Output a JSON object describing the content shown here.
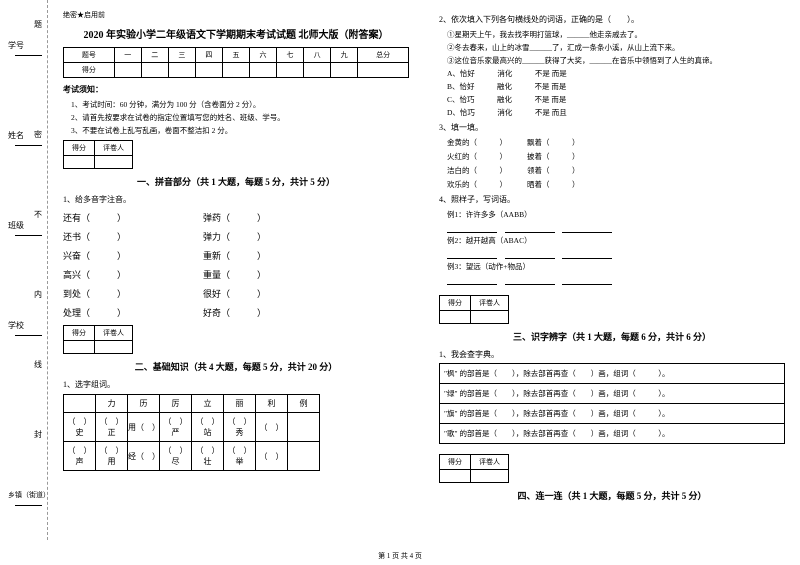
{
  "gutter": {
    "labels": [
      "学号",
      "姓名",
      "班级",
      "学校",
      "乡镇（街道）"
    ],
    "marks": [
      "题",
      "密",
      "不",
      "内",
      "线",
      "封"
    ]
  },
  "secret": "绝密★启用前",
  "title": "2020 年实验小学二年级语文下学期期末考试试题  北师大版（附答案）",
  "scoreHeaders": [
    "题号",
    "一",
    "二",
    "三",
    "四",
    "五",
    "六",
    "七",
    "八",
    "九",
    "总分"
  ],
  "scoreRow": "得分",
  "noticeTitle": "考试须知：",
  "notices": [
    "1、考试时间：60 分钟，满分为 100 分（含卷面分 2 分）。",
    "2、请首先按要求在试卷的指定位置填写您的姓名、班级、学号。",
    "3、不要在试卷上乱写乱画，卷面不整洁扣 2 分。"
  ],
  "marker": {
    "c1": "得分",
    "c2": "评卷人"
  },
  "s1": {
    "title": "一、拼音部分（共 1 大题，每题 5 分，共计 5 分）",
    "q": "1、给多音字注音。",
    "rows": [
      [
        "还有（　　　）",
        "弹药（　　　）"
      ],
      [
        "还书（　　　）",
        "弹力（　　　）"
      ],
      [
        "兴奋（　　　）",
        "重新（　　　）"
      ],
      [
        "高兴（　　　）",
        "重量（　　　）"
      ],
      [
        "到处（　　　）",
        "很好（　　　）"
      ],
      [
        "处理（　　　）",
        "好奇（　　　）"
      ]
    ]
  },
  "s2": {
    "title": "二、基础知识（共 4 大题，每题 5 分，共计 20 分）",
    "q1": "1、选字组词。",
    "charHeader": [
      "",
      "力",
      "历",
      "厉",
      "立",
      "丽",
      "利",
      "例"
    ],
    "charRows": [
      [
        "（　）史",
        "（　）正",
        "用（　）",
        "（　）严",
        "（　）站",
        "（　）秀",
        "（　）",
        ""
      ],
      [
        "（　）声",
        "（　）用",
        "经（　）",
        "（　）尽",
        "（　）壮",
        "（　）举",
        "（　）",
        ""
      ]
    ],
    "q2": "2、依次填入下列各句横线处的词语，正确的是（　　）。",
    "q2lines": [
      "①星期天上午，我去找李明打篮球，______他走亲戚去了。",
      "②冬去春来，山上的冰雪______了，汇成一条条小溪，从山上流下来。",
      "③这位音乐家最高兴的______获得了大奖，______在音乐中领悟到了人生的真谛。"
    ],
    "options": [
      "A、恰好　　　消化　　　不是  而是",
      "B、恰好　　　融化　　　不是  而是",
      "C、恰巧　　　融化　　　不是  而是",
      "D、恰巧　　　消化　　　不是  而且"
    ],
    "q3": "3、填一填。",
    "q3rows": [
      [
        "金黄的（　　　）",
        "飘着（　　　）"
      ],
      [
        "火红的（　　　）",
        "披着（　　　）"
      ],
      [
        "洁白的（　　　）",
        "领着（　　　）"
      ],
      [
        "欢乐的（　　　）",
        "晒着（　　　）"
      ]
    ],
    "q4": "4、照样子，写词语。",
    "q4a": "例1：许许多多（AABB）",
    "q4b": "例2：越开越高（ABAC）",
    "q4c": "例3：望远（动作+物品）"
  },
  "s3": {
    "title": "三、识字辨字（共 1 大题，每题 6 分，共计 6 分）",
    "q": "1、我会查字典。",
    "rows": [
      "\"枫\" 的部首是（　　），除去部首再查（　　）画，组词（　　　）。",
      "\"绿\" 的部首是（　　），除去部首再查（　　）画，组词（　　　）。",
      "\"旗\" 的部首是（　　），除去部首再查（　　）画，组词（　　　）。",
      "\"歌\" 的部首是（　　），除去部首再查（　　）画，组词（　　　）。"
    ]
  },
  "s4": {
    "title": "四、连一连（共 1 大题，每题 5 分，共计 5 分）"
  },
  "footer": "第 1 页 共 4 页"
}
